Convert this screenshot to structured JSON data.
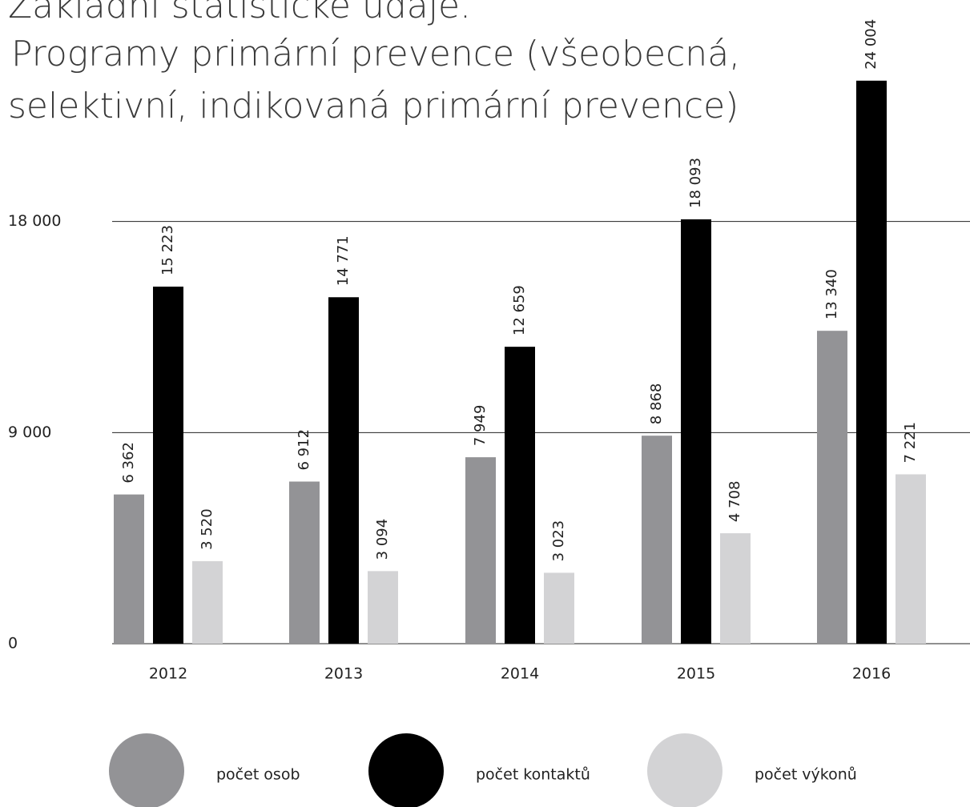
{
  "chart_data": {
    "type": "bar",
    "title": "Základní statistické údaje.",
    "subtitle": [
      "Programy primární prevence (všeobecná,",
      "selektivní, indikovaná primární prevence)"
    ],
    "categories": [
      "2012",
      "2013",
      "2014",
      "2015",
      "2016"
    ],
    "series": [
      {
        "name": "počet osob",
        "color": "#939396",
        "values": [
          6362,
          6912,
          7949,
          8868,
          13340
        ],
        "value_labels": [
          "6 362",
          "6 912",
          "7 949",
          "8 868",
          "13 340"
        ]
      },
      {
        "name": "počet kontaktů",
        "color": "#000000",
        "values": [
          15223,
          14771,
          12659,
          18093,
          24004
        ],
        "value_labels": [
          "15 223",
          "14 771",
          "12 659",
          "18 093",
          "24 004"
        ]
      },
      {
        "name": "počet výkonů",
        "color": "#d3d3d5",
        "values": [
          3520,
          3094,
          3023,
          4708,
          7221
        ],
        "value_labels": [
          "3 520",
          "3 094",
          "3 023",
          "4 708",
          "7 221"
        ]
      }
    ],
    "ylim": [
      0,
      27000
    ],
    "yticks": [
      0,
      {
        "value": 9000,
        "label": "9 000"
      },
      {
        "value": 18000,
        "label": "18 000"
      }
    ],
    "grid": true
  }
}
